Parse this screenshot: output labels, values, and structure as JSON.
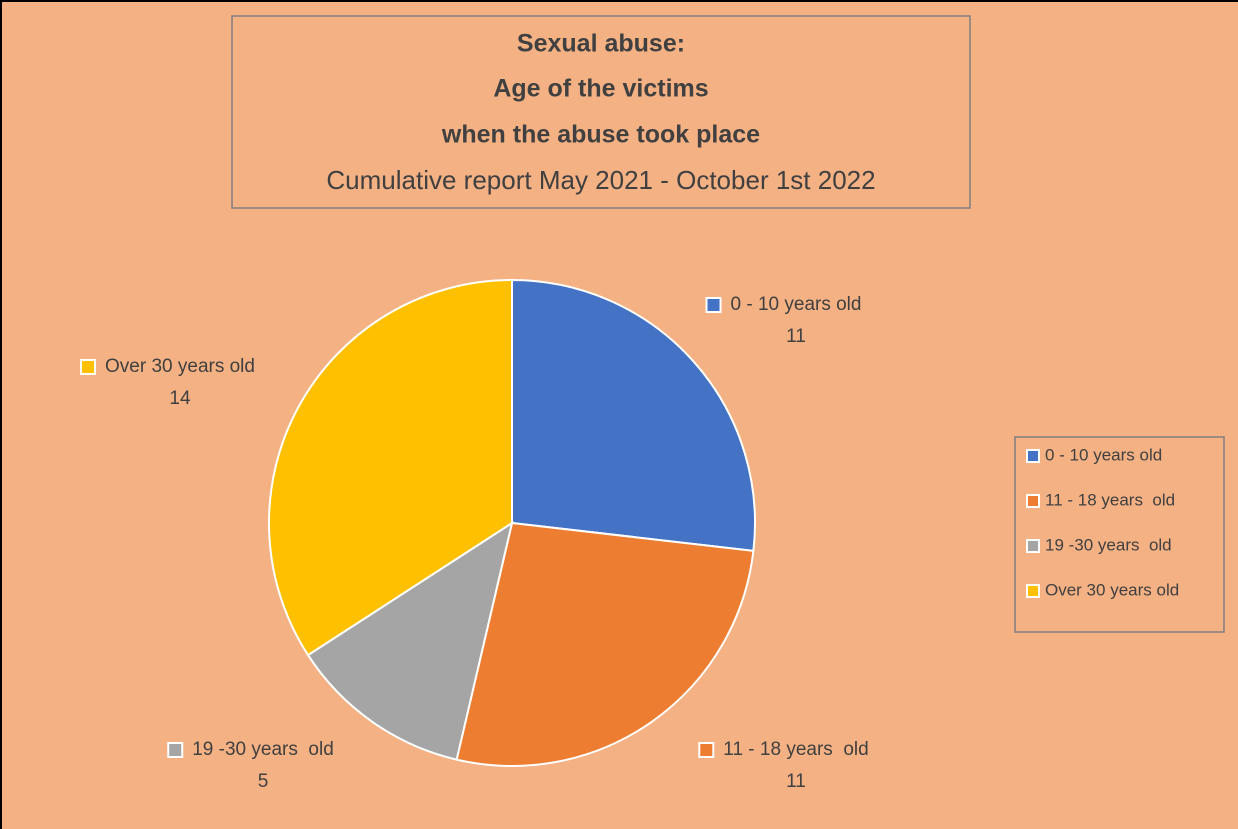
{
  "chart_data": {
    "type": "pie",
    "title": [
      "Sexual abuse:",
      "Age of the victims",
      "when the abuse took place"
    ],
    "subtitle": "Cumulative report May 2021 - October 1st 2022",
    "categories": [
      "0 - 10 years old",
      "11 - 18 years  old",
      "19 -30 years  old",
      "Over 30 years old"
    ],
    "values": [
      11,
      11,
      5,
      14
    ],
    "colors": [
      "#4472c4",
      "#ed7d31",
      "#a5a5a5",
      "#ffc000"
    ],
    "legend": "right"
  }
}
